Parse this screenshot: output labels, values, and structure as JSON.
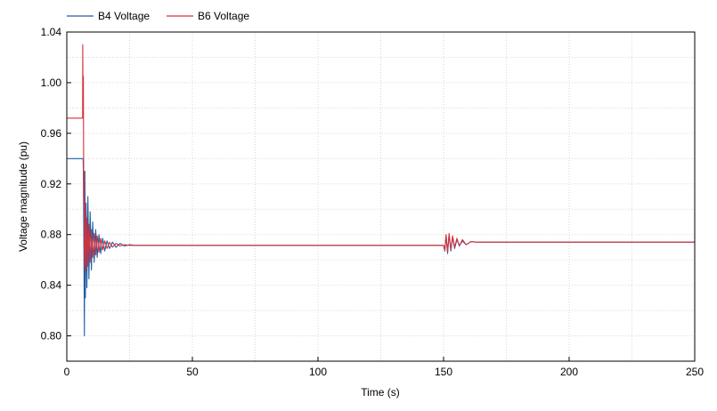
{
  "chart_data": {
    "type": "line",
    "title": "",
    "xlabel": "Time (s)",
    "ylabel": "Voltage magnitude (pu)",
    "xlim": [
      0,
      250
    ],
    "ylim": [
      0.78,
      1.04
    ],
    "xticks": [
      0,
      50,
      100,
      150,
      200,
      250
    ],
    "xtick_labels": [
      "0",
      "50",
      "100",
      "150",
      "200",
      "250"
    ],
    "yticks": [
      0.8,
      0.84,
      0.88,
      0.92,
      0.96,
      1.0,
      1.04
    ],
    "ytick_labels": [
      "0.80",
      "0.84",
      "0.88",
      "0.92",
      "0.96",
      "1.00",
      "1.04"
    ],
    "grid": true,
    "legend_position": "top-left",
    "series": [
      {
        "name": "B4 Voltage",
        "color": "#1f5fa8",
        "x": [
          0,
          6.5,
          6.6,
          6.8,
          7.0,
          7.2,
          7.4,
          7.7,
          8.0,
          8.4,
          8.8,
          9.3,
          9.8,
          10.3,
          10.9,
          11.5,
          12.1,
          12.8,
          13.5,
          14.3,
          15.1,
          16.0,
          17.0,
          18.2,
          19.6,
          21.2,
          23.0,
          25.0,
          27.0,
          150.0,
          150.5,
          151.0,
          151.6,
          152.2,
          152.9,
          153.6,
          154.4,
          155.3,
          156.3,
          157.5,
          159.0,
          161.0,
          163.0,
          250
        ],
        "y": [
          0.94,
          0.94,
          0.93,
          0.87,
          0.8,
          0.93,
          0.83,
          0.905,
          0.838,
          0.91,
          0.845,
          0.898,
          0.852,
          0.89,
          0.858,
          0.884,
          0.862,
          0.88,
          0.865,
          0.877,
          0.867,
          0.875,
          0.869,
          0.874,
          0.87,
          0.873,
          0.871,
          0.872,
          0.8715,
          0.8715,
          0.867,
          0.879,
          0.865,
          0.88,
          0.867,
          0.878,
          0.869,
          0.876,
          0.871,
          0.875,
          0.872,
          0.8745,
          0.874,
          0.874
        ]
      },
      {
        "name": "B6 Voltage",
        "color": "#d6303a",
        "x": [
          0,
          6.3,
          6.35,
          6.45,
          6.6,
          6.75,
          6.9,
          7.05,
          7.3,
          7.6,
          8.0,
          8.4,
          8.8,
          9.3,
          9.8,
          10.3,
          10.9,
          11.5,
          12.1,
          12.8,
          13.5,
          14.3,
          15.1,
          16.0,
          17.0,
          18.2,
          19.6,
          21.2,
          23.0,
          25.0,
          150.0,
          150.5,
          151.0,
          151.6,
          152.2,
          152.9,
          153.6,
          154.4,
          155.3,
          156.3,
          157.5,
          159.0,
          161.0,
          163.0,
          250
        ],
        "y": [
          0.972,
          0.972,
          1.03,
          0.985,
          1.005,
          0.905,
          0.93,
          0.855,
          0.905,
          0.85,
          0.893,
          0.855,
          0.888,
          0.858,
          0.884,
          0.862,
          0.881,
          0.864,
          0.879,
          0.866,
          0.877,
          0.868,
          0.875,
          0.869,
          0.874,
          0.87,
          0.873,
          0.871,
          0.872,
          0.8715,
          0.8715,
          0.868,
          0.88,
          0.866,
          0.881,
          0.868,
          0.879,
          0.87,
          0.877,
          0.871,
          0.876,
          0.872,
          0.8745,
          0.874,
          0.874
        ]
      }
    ]
  }
}
